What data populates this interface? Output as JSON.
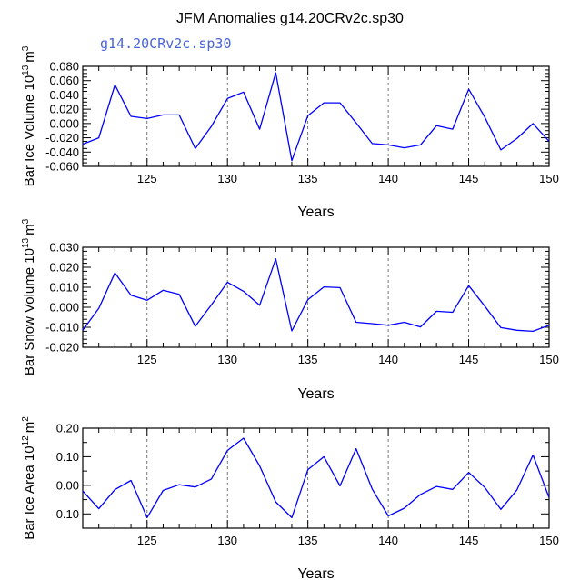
{
  "title": "JFM Anomalies g14.20CRv2c.sp30",
  "legend_label": "g14.20CRv2c.sp30",
  "colors": {
    "line": "#0000ff",
    "axes": "#000000",
    "grid": "#555555",
    "legend": "#4a63d6"
  },
  "chart_data": [
    {
      "type": "line",
      "ylabel_main": "Bar Ice Volume 10",
      "ylabel_exp": "13",
      "ylabel_unit": "m",
      "ylabel_unit_exp": "3",
      "xlabel": "Years",
      "xlim": [
        121,
        150
      ],
      "ylim": [
        -0.06,
        0.08
      ],
      "xticks": [
        125,
        130,
        135,
        140,
        145,
        150
      ],
      "xtick_labels": [
        "125",
        "130",
        "135",
        "140",
        "145",
        "150"
      ],
      "yticks": [
        -0.06,
        -0.04,
        -0.02,
        0.0,
        0.02,
        0.04,
        0.06,
        0.08
      ],
      "ytick_labels": [
        "-0.060",
        "-0.040",
        "-0.020",
        "0.000",
        "0.020",
        "0.040",
        "0.060",
        "0.080"
      ],
      "x": [
        121,
        122,
        123,
        124,
        125,
        126,
        127,
        128,
        129,
        130,
        131,
        132,
        133,
        134,
        135,
        136,
        137,
        138,
        139,
        140,
        141,
        142,
        143,
        144,
        145,
        146,
        147,
        148,
        149,
        150
      ],
      "values": [
        -0.029,
        -0.02,
        0.054,
        0.01,
        0.007,
        0.012,
        0.012,
        -0.035,
        -0.004,
        0.035,
        0.044,
        -0.008,
        0.071,
        -0.052,
        0.011,
        0.029,
        0.029,
        0.001,
        -0.028,
        -0.03,
        -0.034,
        -0.03,
        -0.003,
        -0.008,
        0.048,
        0.009,
        -0.037,
        -0.021,
        0.0,
        -0.025
      ]
    },
    {
      "type": "line",
      "ylabel_main": "Bar Snow Volume 10",
      "ylabel_exp": "13",
      "ylabel_unit": "m",
      "ylabel_unit_exp": "3",
      "xlabel": "Years",
      "xlim": [
        121,
        150
      ],
      "ylim": [
        -0.02,
        0.03
      ],
      "xticks": [
        125,
        130,
        135,
        140,
        145,
        150
      ],
      "xtick_labels": [
        "125",
        "130",
        "135",
        "140",
        "145",
        "150"
      ],
      "yticks": [
        -0.02,
        -0.01,
        0.0,
        0.01,
        0.02,
        0.03
      ],
      "ytick_labels": [
        "-0.020",
        "-0.010",
        "0.000",
        "0.010",
        "0.020",
        "0.030"
      ],
      "x": [
        121,
        122,
        123,
        124,
        125,
        126,
        127,
        128,
        129,
        130,
        131,
        132,
        133,
        134,
        135,
        136,
        137,
        138,
        139,
        140,
        141,
        142,
        143,
        144,
        145,
        146,
        147,
        148,
        149,
        150
      ],
      "values": [
        -0.0115,
        -0.0005,
        0.0172,
        0.006,
        0.0035,
        0.0085,
        0.0065,
        -0.0095,
        0.0012,
        0.0125,
        0.008,
        0.001,
        0.0242,
        -0.0118,
        0.0038,
        0.0102,
        0.0098,
        -0.0075,
        -0.0082,
        -0.009,
        -0.0075,
        -0.0098,
        -0.002,
        -0.0025,
        0.0108,
        0.0006,
        -0.0102,
        -0.0115,
        -0.012,
        -0.009
      ]
    },
    {
      "type": "line",
      "ylabel_main": "Bar Ice Area 10",
      "ylabel_exp": "12",
      "ylabel_unit": "m",
      "ylabel_unit_exp": "2",
      "xlabel": "Years",
      "xlim": [
        121,
        150
      ],
      "ylim": [
        -0.15,
        0.2
      ],
      "xticks": [
        125,
        130,
        135,
        140,
        145,
        150
      ],
      "xtick_labels": [
        "125",
        "130",
        "135",
        "140",
        "145",
        "150"
      ],
      "yticks": [
        -0.1,
        0.0,
        0.1,
        0.2
      ],
      "ytick_labels": [
        "-0.10",
        "0.00",
        "0.10",
        "0.20"
      ],
      "x": [
        121,
        122,
        123,
        124,
        125,
        126,
        127,
        128,
        129,
        130,
        131,
        132,
        133,
        134,
        135,
        136,
        137,
        138,
        139,
        140,
        141,
        142,
        143,
        144,
        145,
        146,
        147,
        148,
        149,
        150
      ],
      "values": [
        -0.02,
        -0.082,
        -0.015,
        0.017,
        -0.113,
        -0.018,
        0.002,
        -0.006,
        0.022,
        0.122,
        0.165,
        0.068,
        -0.058,
        -0.113,
        0.055,
        0.1,
        -0.002,
        0.128,
        -0.013,
        -0.107,
        -0.08,
        -0.032,
        -0.004,
        -0.014,
        0.045,
        -0.007,
        -0.084,
        -0.016,
        0.106,
        -0.043
      ]
    }
  ]
}
